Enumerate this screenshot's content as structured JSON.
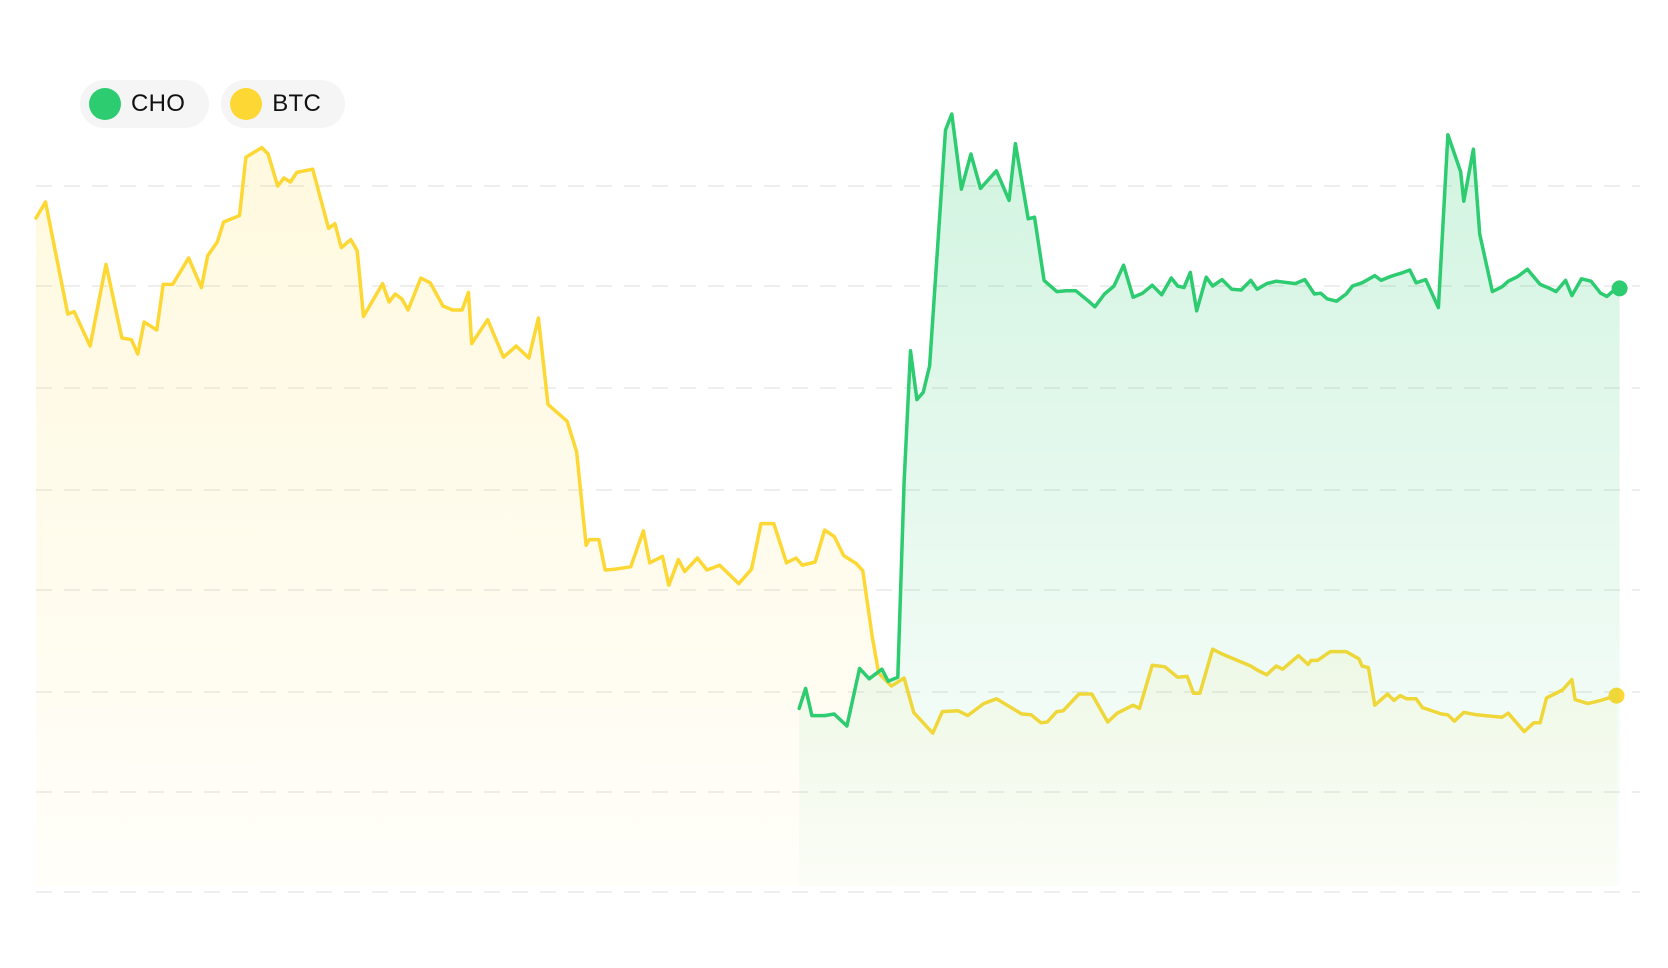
{
  "chart_data": {
    "type": "area",
    "title": "",
    "xlabel": "",
    "ylabel": "",
    "grid": true,
    "legend_placement": "top-left",
    "ylim": [
      0,
      100
    ],
    "xlim": [
      0,
      100
    ],
    "series": [
      {
        "name": "BTC",
        "color": "#FDD835",
        "fill": true,
        "end_marker": true,
        "points": [
          [
            0.0,
            83.5
          ],
          [
            0.6,
            85.5
          ],
          [
            2.0,
            71.5
          ],
          [
            2.4,
            71.8
          ],
          [
            3.4,
            67.5
          ],
          [
            4.4,
            77.7
          ],
          [
            5.4,
            68.5
          ],
          [
            6.0,
            68.3
          ],
          [
            6.4,
            66.5
          ],
          [
            6.8,
            70.5
          ],
          [
            7.6,
            69.5
          ],
          [
            8.0,
            75.2
          ],
          [
            8.6,
            75.2
          ],
          [
            9.6,
            78.5
          ],
          [
            10.4,
            74.8
          ],
          [
            10.8,
            78.8
          ],
          [
            11.4,
            80.5
          ],
          [
            11.8,
            83.0
          ],
          [
            12.8,
            83.8
          ],
          [
            13.2,
            91.1
          ],
          [
            14.2,
            92.3
          ],
          [
            14.6,
            91.5
          ],
          [
            15.2,
            87.5
          ],
          [
            15.6,
            88.5
          ],
          [
            16.0,
            88.0
          ],
          [
            16.4,
            89.2
          ],
          [
            17.4,
            89.6
          ],
          [
            18.4,
            82.2
          ],
          [
            18.8,
            82.8
          ],
          [
            19.2,
            79.8
          ],
          [
            19.8,
            80.8
          ],
          [
            20.2,
            79.4
          ],
          [
            20.6,
            71.2
          ],
          [
            21.8,
            75.3
          ],
          [
            22.2,
            73.0
          ],
          [
            22.6,
            74.0
          ],
          [
            23.0,
            73.4
          ],
          [
            23.4,
            72.0
          ],
          [
            24.2,
            76.0
          ],
          [
            24.8,
            75.4
          ],
          [
            25.6,
            72.5
          ],
          [
            26.2,
            72.0
          ],
          [
            26.8,
            72.0
          ],
          [
            27.2,
            74.2
          ],
          [
            27.4,
            67.8
          ],
          [
            28.4,
            70.8
          ],
          [
            29.4,
            66.1
          ],
          [
            30.2,
            67.5
          ],
          [
            31.0,
            66.0
          ],
          [
            31.6,
            71.0
          ],
          [
            32.2,
            60.2
          ],
          [
            33.4,
            58.1
          ],
          [
            34.0,
            54.3
          ],
          [
            34.6,
            42.6
          ],
          [
            34.8,
            43.3
          ],
          [
            35.4,
            43.3
          ],
          [
            35.8,
            39.5
          ],
          [
            36.4,
            39.6
          ],
          [
            37.4,
            39.9
          ],
          [
            38.2,
            44.4
          ],
          [
            38.6,
            40.4
          ],
          [
            39.4,
            41.2
          ],
          [
            39.8,
            37.6
          ],
          [
            40.4,
            40.8
          ],
          [
            40.8,
            39.3
          ],
          [
            41.6,
            41.0
          ],
          [
            42.2,
            39.5
          ],
          [
            43.0,
            40.1
          ],
          [
            44.2,
            37.8
          ],
          [
            45.0,
            39.6
          ],
          [
            45.6,
            45.3
          ],
          [
            46.4,
            45.3
          ],
          [
            47.2,
            40.4
          ],
          [
            47.8,
            41.0
          ],
          [
            48.2,
            40.1
          ],
          [
            49.0,
            40.5
          ],
          [
            49.6,
            44.5
          ],
          [
            50.2,
            43.7
          ],
          [
            50.8,
            41.3
          ],
          [
            51.6,
            40.3
          ],
          [
            52.0,
            39.4
          ],
          [
            52.6,
            31.1
          ],
          [
            53.0,
            26.6
          ],
          [
            53.8,
            25.0
          ],
          [
            54.6,
            26.0
          ],
          [
            55.2,
            21.7
          ],
          [
            56.4,
            19.1
          ],
          [
            57.0,
            21.8
          ],
          [
            58.0,
            21.9
          ],
          [
            58.6,
            21.3
          ],
          [
            59.6,
            22.8
          ],
          [
            60.4,
            23.4
          ],
          [
            62.0,
            21.5
          ],
          [
            62.6,
            21.4
          ],
          [
            63.2,
            20.4
          ],
          [
            63.6,
            20.5
          ],
          [
            64.2,
            21.8
          ],
          [
            64.6,
            21.9
          ],
          [
            65.6,
            24.0
          ],
          [
            66.4,
            24.0
          ],
          [
            67.4,
            20.5
          ],
          [
            68.0,
            21.6
          ],
          [
            69.0,
            22.6
          ],
          [
            69.4,
            22.2
          ],
          [
            70.2,
            27.6
          ],
          [
            71.0,
            27.4
          ],
          [
            71.8,
            26.1
          ],
          [
            72.4,
            26.2
          ],
          [
            72.8,
            24.1
          ],
          [
            73.2,
            24.1
          ],
          [
            74.0,
            29.6
          ],
          [
            74.6,
            29.0
          ],
          [
            76.4,
            27.5
          ],
          [
            76.8,
            27.0
          ],
          [
            77.4,
            26.4
          ],
          [
            78.0,
            27.5
          ],
          [
            78.4,
            27.1
          ],
          [
            79.4,
            28.8
          ],
          [
            80.0,
            27.7
          ],
          [
            80.2,
            28.2
          ],
          [
            80.6,
            28.2
          ],
          [
            81.4,
            29.3
          ],
          [
            82.4,
            29.3
          ],
          [
            83.2,
            28.4
          ],
          [
            83.4,
            27.5
          ],
          [
            83.8,
            27.3
          ],
          [
            84.2,
            22.6
          ],
          [
            85.0,
            24.0
          ],
          [
            85.4,
            23.2
          ],
          [
            85.8,
            23.8
          ],
          [
            86.2,
            23.4
          ],
          [
            86.8,
            23.4
          ],
          [
            87.2,
            22.3
          ],
          [
            88.4,
            21.5
          ],
          [
            88.8,
            21.4
          ],
          [
            89.2,
            20.6
          ],
          [
            89.8,
            21.7
          ],
          [
            90.6,
            21.4
          ],
          [
            92.2,
            21.1
          ],
          [
            92.6,
            21.6
          ],
          [
            93.6,
            19.3
          ],
          [
            94.2,
            20.4
          ],
          [
            94.6,
            20.4
          ],
          [
            95.0,
            23.5
          ],
          [
            96.0,
            24.5
          ],
          [
            96.6,
            25.8
          ],
          [
            96.8,
            23.3
          ],
          [
            97.6,
            22.8
          ],
          [
            98.4,
            23.2
          ],
          [
            99.4,
            23.8
          ]
        ]
      },
      {
        "name": "CHO",
        "color": "#2ECC71",
        "fill": true,
        "end_marker": true,
        "points": [
          [
            48.0,
            22.2
          ],
          [
            48.4,
            24.7
          ],
          [
            48.8,
            21.3
          ],
          [
            49.6,
            21.3
          ],
          [
            50.2,
            21.5
          ],
          [
            51.0,
            20.0
          ],
          [
            51.8,
            27.2
          ],
          [
            52.4,
            25.9
          ],
          [
            53.2,
            27.1
          ],
          [
            53.6,
            25.6
          ],
          [
            54.2,
            26.1
          ],
          [
            54.6,
            50.5
          ],
          [
            55.0,
            66.9
          ],
          [
            55.4,
            60.8
          ],
          [
            55.8,
            61.7
          ],
          [
            56.2,
            65.0
          ],
          [
            57.2,
            94.5
          ],
          [
            57.6,
            96.5
          ],
          [
            58.2,
            87.1
          ],
          [
            58.8,
            91.5
          ],
          [
            59.4,
            87.2
          ],
          [
            60.4,
            89.4
          ],
          [
            61.2,
            85.7
          ],
          [
            61.6,
            92.8
          ],
          [
            62.4,
            83.4
          ],
          [
            62.8,
            83.6
          ],
          [
            63.4,
            75.7
          ],
          [
            64.2,
            74.3
          ],
          [
            64.8,
            74.4
          ],
          [
            65.4,
            74.4
          ],
          [
            66.2,
            73.1
          ],
          [
            66.6,
            72.4
          ],
          [
            67.2,
            74.0
          ],
          [
            67.8,
            75.0
          ],
          [
            68.4,
            77.6
          ],
          [
            69.0,
            73.6
          ],
          [
            69.6,
            74.1
          ],
          [
            70.2,
            75.1
          ],
          [
            70.8,
            73.9
          ],
          [
            71.4,
            76.0
          ],
          [
            71.8,
            75.0
          ],
          [
            72.2,
            74.8
          ],
          [
            72.6,
            76.7
          ],
          [
            73.0,
            71.9
          ],
          [
            73.6,
            76.1
          ],
          [
            74.0,
            75.0
          ],
          [
            74.6,
            75.8
          ],
          [
            75.2,
            74.6
          ],
          [
            75.8,
            74.5
          ],
          [
            76.4,
            75.7
          ],
          [
            76.8,
            74.6
          ],
          [
            77.4,
            75.3
          ],
          [
            78.0,
            75.6
          ],
          [
            79.2,
            75.3
          ],
          [
            79.8,
            75.8
          ],
          [
            80.4,
            74.0
          ],
          [
            80.8,
            74.1
          ],
          [
            81.2,
            73.4
          ],
          [
            81.8,
            73.1
          ],
          [
            82.4,
            74.0
          ],
          [
            82.8,
            75.0
          ],
          [
            83.4,
            75.4
          ],
          [
            84.2,
            76.3
          ],
          [
            84.6,
            75.7
          ],
          [
            85.2,
            76.2
          ],
          [
            86.0,
            76.7
          ],
          [
            86.4,
            77.0
          ],
          [
            86.8,
            75.4
          ],
          [
            87.4,
            75.8
          ],
          [
            88.2,
            72.3
          ],
          [
            88.8,
            93.9
          ],
          [
            89.6,
            89.3
          ],
          [
            89.8,
            85.6
          ],
          [
            90.4,
            92.1
          ],
          [
            90.8,
            81.5
          ],
          [
            91.6,
            74.3
          ],
          [
            92.2,
            74.9
          ],
          [
            92.6,
            75.6
          ],
          [
            93.2,
            76.2
          ],
          [
            93.8,
            77.1
          ],
          [
            94.6,
            75.2
          ],
          [
            95.2,
            74.7
          ],
          [
            95.6,
            74.3
          ],
          [
            96.2,
            75.7
          ],
          [
            96.6,
            73.8
          ],
          [
            97.2,
            75.9
          ],
          [
            97.8,
            75.6
          ],
          [
            98.4,
            74.1
          ],
          [
            98.8,
            73.7
          ],
          [
            99.2,
            74.4
          ],
          [
            99.6,
            74.7
          ]
        ]
      }
    ]
  }
}
